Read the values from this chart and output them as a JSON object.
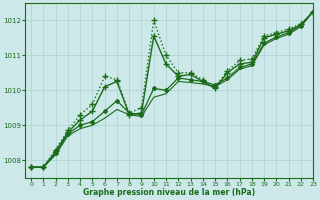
{
  "title": "",
  "xlabel": "Graphe pression niveau de la mer (hPa)",
  "ylabel": "",
  "bg_color": "#cce8e8",
  "line_color": "#1a6b1a",
  "grid_color": "#aed0d0",
  "xlim": [
    -0.5,
    23
  ],
  "ylim": [
    1007.5,
    1012.5
  ],
  "yticks": [
    1008,
    1009,
    1010,
    1011,
    1012
  ],
  "xticks": [
    0,
    1,
    2,
    3,
    4,
    5,
    6,
    7,
    8,
    9,
    10,
    11,
    12,
    13,
    14,
    15,
    16,
    17,
    18,
    19,
    20,
    21,
    22,
    23
  ],
  "series": [
    {
      "x": [
        0,
        1,
        2,
        3,
        4,
        5,
        6,
        7,
        8,
        9,
        10,
        11,
        12,
        13,
        14,
        15,
        16,
        17,
        18,
        19,
        20,
        21,
        22,
        23
      ],
      "y": [
        1007.8,
        1007.8,
        1008.3,
        1008.85,
        1009.3,
        1009.6,
        1010.4,
        1010.3,
        1009.35,
        1009.5,
        1012.0,
        1011.0,
        1010.5,
        1010.5,
        1010.3,
        1010.1,
        1010.55,
        1010.85,
        1010.9,
        1011.55,
        1011.65,
        1011.75,
        1011.9,
        1012.25
      ],
      "style": ":",
      "marker": "+",
      "markersize": 4,
      "lw": 1.0
    },
    {
      "x": [
        0,
        1,
        2,
        3,
        4,
        5,
        6,
        7,
        8,
        9,
        10,
        11,
        12,
        13,
        14,
        15,
        16,
        17,
        18,
        19,
        20,
        21,
        22,
        23
      ],
      "y": [
        1007.8,
        1007.8,
        1008.25,
        1008.8,
        1009.15,
        1009.4,
        1010.1,
        1010.25,
        1009.3,
        1009.35,
        1011.55,
        1010.75,
        1010.4,
        1010.45,
        1010.25,
        1010.05,
        1010.5,
        1010.75,
        1010.8,
        1011.5,
        1011.6,
        1011.7,
        1011.88,
        1012.25
      ],
      "style": "-",
      "marker": "+",
      "markersize": 4,
      "lw": 1.0
    },
    {
      "x": [
        0,
        1,
        2,
        3,
        4,
        5,
        6,
        7,
        8,
        9,
        10,
        11,
        12,
        13,
        14,
        15,
        16,
        17,
        18,
        19,
        20,
        21,
        22,
        23
      ],
      "y": [
        1007.8,
        1007.8,
        1008.2,
        1008.75,
        1009.0,
        1009.1,
        1009.4,
        1009.7,
        1009.35,
        1009.3,
        1010.05,
        1010.0,
        1010.35,
        1010.3,
        1010.25,
        1010.15,
        1010.35,
        1010.65,
        1010.75,
        1011.35,
        1011.52,
        1011.65,
        1011.85,
        1012.25
      ],
      "style": "-",
      "marker": "D",
      "markersize": 2,
      "lw": 0.9
    },
    {
      "x": [
        0,
        1,
        2,
        3,
        4,
        5,
        6,
        7,
        8,
        9,
        10,
        11,
        12,
        13,
        14,
        15,
        16,
        17,
        18,
        19,
        20,
        21,
        22,
        23
      ],
      "y": [
        1007.8,
        1007.8,
        1008.15,
        1008.7,
        1008.9,
        1009.0,
        1009.2,
        1009.45,
        1009.3,
        1009.25,
        1009.8,
        1009.9,
        1010.25,
        1010.22,
        1010.18,
        1010.1,
        1010.3,
        1010.6,
        1010.7,
        1011.3,
        1011.48,
        1011.6,
        1011.82,
        1012.25
      ],
      "style": "-",
      "marker": null,
      "lw": 0.8
    }
  ]
}
